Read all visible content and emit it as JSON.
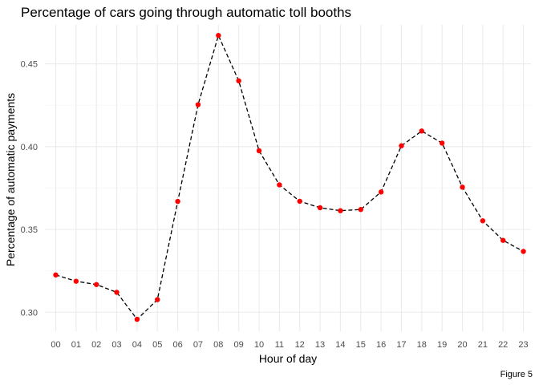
{
  "chart_data": {
    "type": "line",
    "title": "Percentage of cars going through automatic toll booths",
    "xlabel": "Hour of day",
    "ylabel": "Percentage of automatic payments",
    "caption": "Figure 5",
    "categories": [
      "00",
      "01",
      "02",
      "03",
      "04",
      "05",
      "06",
      "07",
      "08",
      "09",
      "10",
      "11",
      "12",
      "13",
      "14",
      "15",
      "16",
      "17",
      "18",
      "19",
      "20",
      "21",
      "22",
      "23"
    ],
    "values": [
      0.3225,
      0.3187,
      0.3167,
      0.312,
      0.2957,
      0.3076,
      0.3669,
      0.4253,
      0.4671,
      0.4397,
      0.3975,
      0.3769,
      0.367,
      0.3631,
      0.3613,
      0.362,
      0.3726,
      0.4005,
      0.4094,
      0.4021,
      0.3755,
      0.3552,
      0.3434,
      0.3367
    ],
    "yticks": [
      0.3,
      0.35,
      0.4,
      0.45
    ],
    "ytick_labels": [
      "0.30",
      "0.35",
      "0.40",
      "0.45"
    ],
    "ylim": [
      0.2885,
      0.4735
    ],
    "grid": true,
    "line_style": "dashed",
    "line_color": "#000000",
    "point_color": "#ff0000"
  }
}
